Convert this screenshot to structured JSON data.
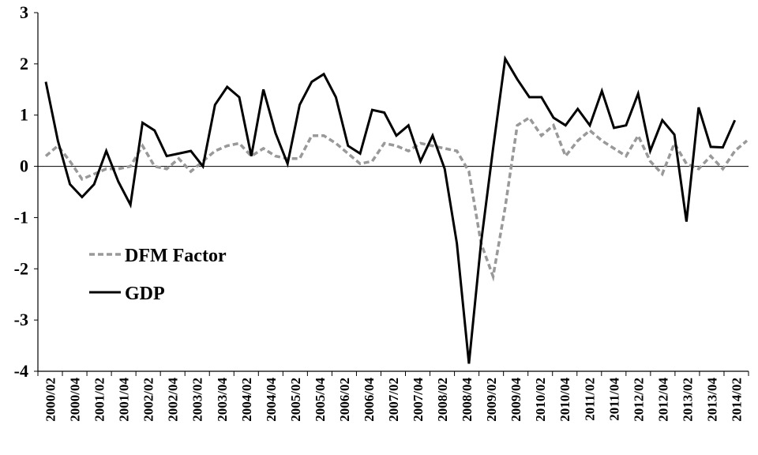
{
  "chart_data": {
    "type": "line",
    "title": "",
    "xlabel": "",
    "ylabel": "",
    "ylim": [
      -4,
      3
    ],
    "yticks": [
      3,
      2,
      1,
      0,
      -1,
      -2,
      -3,
      -4
    ],
    "x_tick_labels": [
      "2000/02",
      "2000/04",
      "2001/02",
      "2001/04",
      "2002/02",
      "2002/04",
      "2003/02",
      "2003/04",
      "2004/02",
      "2004/04",
      "2005/02",
      "2005/04",
      "2006/02",
      "2006/04",
      "2007/02",
      "2007/04",
      "2008/02",
      "2008/04",
      "2009/02",
      "2009/04",
      "2010/02",
      "2010/04",
      "2011/02",
      "2011/04",
      "2012/02",
      "2012/04",
      "2013/02",
      "2013/04",
      "2014/02"
    ],
    "legend_position": "left-middle",
    "grid": false,
    "series": [
      {
        "name": "DFM Factor",
        "style": "dashed",
        "color": "#999999",
        "values": [
          0.2,
          0.4,
          0.1,
          -0.25,
          -0.15,
          -0.05,
          -0.05,
          0.0,
          0.4,
          0.0,
          -0.05,
          0.15,
          -0.1,
          0.1,
          0.3,
          0.4,
          0.45,
          0.2,
          0.35,
          0.2,
          0.15,
          0.15,
          0.6,
          0.6,
          0.45,
          0.25,
          0.05,
          0.1,
          0.45,
          0.4,
          0.3,
          0.45,
          0.4,
          0.35,
          0.3,
          -0.1,
          -1.5,
          -2.15,
          -0.8,
          0.8,
          0.95,
          0.6,
          0.8,
          0.2,
          0.5,
          0.7,
          0.5,
          0.35,
          0.2,
          0.6,
          0.1,
          -0.15,
          0.45,
          0.05,
          -0.05,
          0.2,
          -0.05,
          0.3,
          0.5
        ]
      },
      {
        "name": "GDP",
        "style": "solid",
        "color": "#000000",
        "values": [
          1.65,
          0.5,
          -0.35,
          -0.6,
          -0.35,
          0.3,
          -0.3,
          -0.75,
          0.85,
          0.7,
          0.2,
          0.25,
          0.3,
          0.0,
          1.2,
          1.55,
          1.35,
          0.2,
          1.5,
          0.65,
          0.05,
          1.2,
          1.65,
          1.8,
          1.35,
          0.4,
          0.25,
          1.1,
          1.05,
          0.6,
          0.8,
          0.1,
          0.6,
          -0.05,
          -1.5,
          -3.85,
          -1.5,
          0.35,
          2.1,
          1.7,
          1.35,
          1.35,
          0.95,
          0.8,
          1.12,
          0.8,
          1.47,
          0.75,
          0.8,
          1.42,
          0.3,
          0.9,
          0.62,
          -1.08,
          1.15,
          0.38,
          0.37,
          0.9
        ]
      }
    ]
  }
}
